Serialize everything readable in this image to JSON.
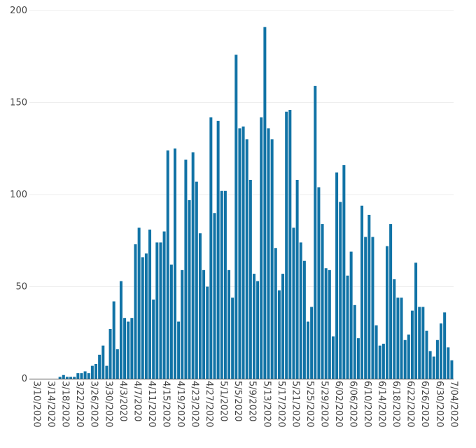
{
  "chart_data": {
    "type": "bar",
    "title": "",
    "xlabel": "",
    "ylabel": "",
    "ylim": [
      0,
      200
    ],
    "yticks": [
      0,
      50,
      100,
      150,
      200
    ],
    "grid": true,
    "color": "#1173a6",
    "tick_labels": [
      "3/10/2020",
      "3/14/2020",
      "3/18/2020",
      "3/22/2020",
      "3/26/2020",
      "3/30/2020",
      "4/3/2020",
      "4/7/2020",
      "4/11/2020",
      "4/15/2020",
      "4/19/2020",
      "4/23/2020",
      "4/27/2020",
      "5/1/2020",
      "5/5/2020",
      "5/9/2020",
      "5/13/2020",
      "5/17/2020",
      "5/21/2020",
      "5/25/2020",
      "5/29/2020",
      "6/02/2020",
      "6/06/2020",
      "6/10/2020",
      "6/14/2020",
      "6/18/2020",
      "6/22/2020",
      "6/26/2020",
      "6/30/2020",
      "7/04/2020"
    ],
    "values": [
      0,
      0,
      0,
      0,
      0,
      0,
      0,
      0,
      1,
      2,
      1,
      1,
      1,
      3,
      3,
      4,
      3,
      7,
      8,
      13,
      18,
      7,
      27,
      42,
      16,
      53,
      33,
      31,
      33,
      73,
      82,
      66,
      68,
      81,
      43,
      74,
      74,
      80,
      124,
      62,
      125,
      31,
      59,
      119,
      97,
      123,
      107,
      79,
      59,
      50,
      142,
      90,
      140,
      102,
      102,
      59,
      44,
      176,
      136,
      137,
      130,
      108,
      57,
      53,
      142,
      191,
      136,
      130,
      71,
      48,
      57,
      145,
      146,
      82,
      108,
      74,
      64,
      31,
      39,
      159,
      104,
      84,
      60,
      59,
      23,
      112,
      96,
      116,
      56,
      69,
      40,
      22,
      94,
      77,
      89,
      77,
      29,
      18,
      19,
      72,
      84,
      54,
      44,
      44,
      21,
      24,
      37,
      63,
      39,
      39,
      26,
      15,
      12,
      21,
      30,
      36,
      17,
      10
    ]
  }
}
